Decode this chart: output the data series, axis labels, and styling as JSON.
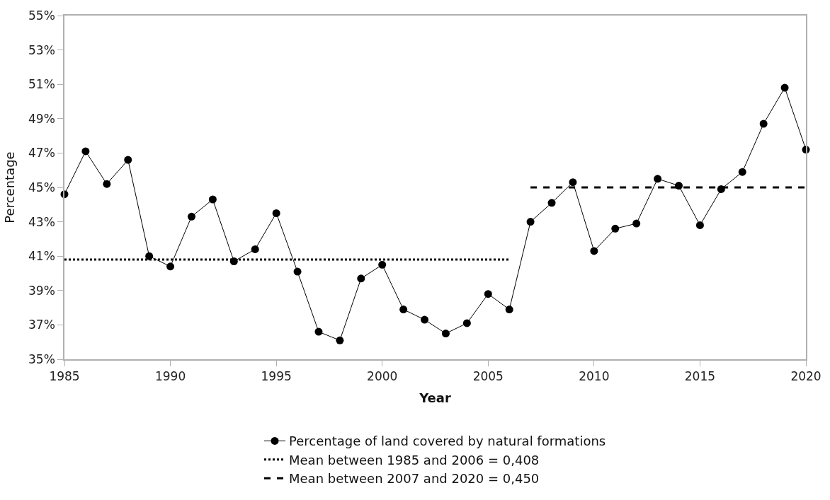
{
  "chart_data": {
    "type": "line",
    "xlabel": "Year",
    "ylabel": "Percentage",
    "x": [
      1985,
      1986,
      1987,
      1988,
      1989,
      1990,
      1991,
      1992,
      1993,
      1994,
      1995,
      1996,
      1997,
      1998,
      1999,
      2000,
      2001,
      2002,
      2003,
      2004,
      2005,
      2006,
      2007,
      2008,
      2009,
      2010,
      2011,
      2012,
      2013,
      2014,
      2015,
      2016,
      2017,
      2018,
      2019,
      2020
    ],
    "series": [
      {
        "name": "Percentage of land covered by natural formations",
        "color": "#000000",
        "marker": "circle",
        "line_style": "solid",
        "values": [
          44.6,
          47.1,
          45.2,
          46.6,
          41.0,
          40.4,
          43.3,
          44.3,
          40.7,
          41.4,
          43.5,
          40.1,
          36.6,
          36.1,
          39.7,
          40.5,
          37.9,
          37.3,
          36.5,
          37.1,
          38.8,
          37.9,
          43.0,
          44.1,
          45.3,
          41.3,
          42.6,
          42.9,
          45.5,
          45.1,
          42.8,
          44.9,
          45.9,
          48.7,
          50.8,
          47.2
        ]
      },
      {
        "name": "Mean between 1985 and 2006 = 0,408",
        "color": "#000000",
        "marker": "none",
        "line_style": "dotted",
        "x": [
          1985,
          2006
        ],
        "values": [
          40.8,
          40.8
        ]
      },
      {
        "name": "Mean between 2007 and 2020 = 0,450",
        "color": "#000000",
        "marker": "none",
        "line_style": "dashed",
        "x": [
          2007,
          2020
        ],
        "values": [
          45.0,
          45.0
        ]
      }
    ],
    "xlim": [
      1985,
      2020
    ],
    "xticks": [
      1985,
      1990,
      1995,
      2000,
      2005,
      2010,
      2015,
      2020
    ],
    "ylim": [
      35,
      55
    ],
    "yticks": [
      {
        "value": 35,
        "label": "35%"
      },
      {
        "value": 37,
        "label": "37%"
      },
      {
        "value": 39,
        "label": "39%"
      },
      {
        "value": 41,
        "label": "41%"
      },
      {
        "value": 43,
        "label": "43%"
      },
      {
        "value": 45,
        "label": "45%"
      },
      {
        "value": 47,
        "label": "47%"
      },
      {
        "value": 49,
        "label": "49%"
      },
      {
        "value": 51,
        "label": "51%"
      },
      {
        "value": 53,
        "label": "53%"
      },
      {
        "value": 55,
        "label": "55%"
      }
    ],
    "grid": false,
    "legend": "bottom"
  }
}
